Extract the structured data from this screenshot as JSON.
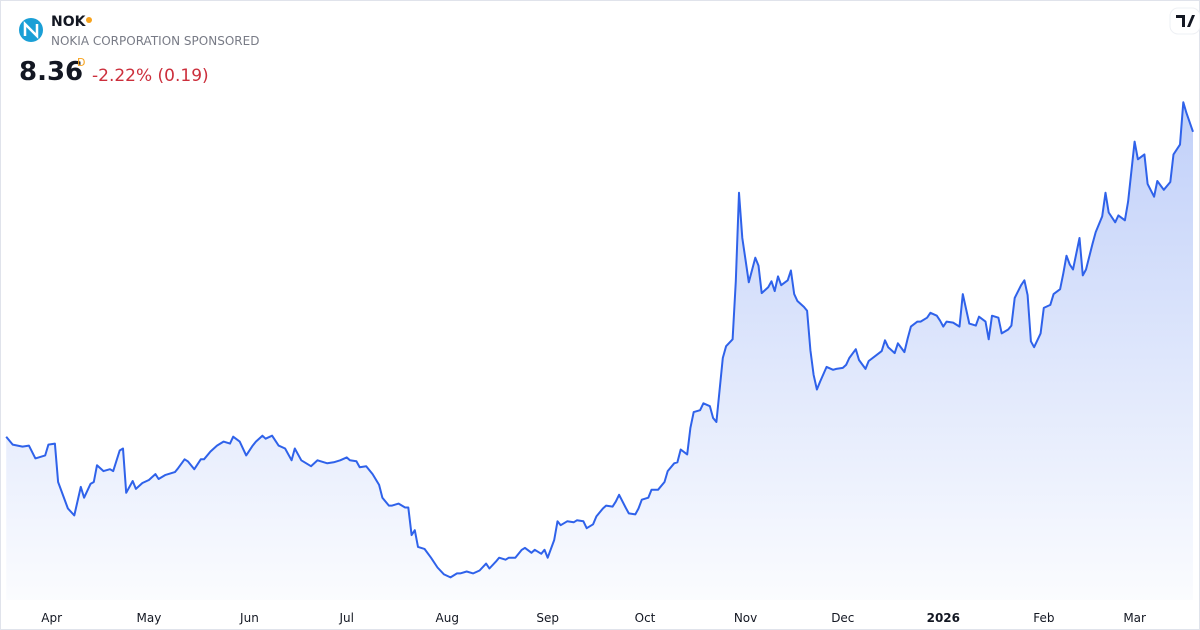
{
  "header": {
    "symbol": "NOK",
    "name": "NOKIA CORPORATION SPONSORED",
    "price": 8.36,
    "interval": "D",
    "change": "-2.22% (0.19)"
  },
  "chart_data": {
    "type": "area",
    "color": "#2f62ea",
    "x": [
      -14,
      -12,
      -9,
      -7,
      -5,
      -2,
      -1,
      1,
      2,
      5,
      7,
      9,
      10,
      12,
      13,
      14,
      16,
      18,
      19,
      21,
      22,
      23,
      25,
      26,
      28,
      30,
      32,
      33,
      35,
      38,
      39,
      41,
      42,
      44,
      46,
      47,
      49,
      51,
      53,
      55,
      56,
      58,
      60,
      62,
      63,
      65,
      66,
      68,
      70,
      72,
      74,
      75,
      77,
      78,
      80,
      82,
      85,
      87,
      89,
      91,
      92,
      94,
      95,
      97,
      99,
      101,
      102,
      104,
      105,
      107,
      109,
      110,
      111,
      112,
      113,
      115,
      117,
      119,
      121,
      123,
      125,
      126,
      128,
      130,
      132,
      134,
      135,
      137,
      138,
      140,
      141,
      143,
      145,
      146,
      148,
      149,
      151,
      152,
      153,
      155,
      156,
      157,
      159,
      161,
      162,
      164,
      165,
      167,
      168,
      170,
      171,
      173,
      174,
      175,
      177,
      178,
      180,
      181,
      182,
      184,
      185,
      187,
      189,
      190,
      192,
      193,
      194,
      196,
      197,
      198,
      200,
      201,
      203,
      204,
      205,
      207,
      208,
      210,
      211,
      212,
      213,
      214,
      215,
      217,
      218,
      219,
      221,
      222,
      223,
      224,
      225,
      227,
      228,
      229,
      230,
      232,
      233,
      234,
      235,
      236,
      237,
      239,
      241,
      242,
      244,
      245,
      246,
      248,
      249,
      251,
      252,
      254,
      256,
      257,
      258,
      260,
      261,
      263,
      264,
      265,
      267,
      268,
      270,
      271,
      273,
      274,
      275,
      276,
      278,
      280,
      281,
      283,
      285,
      286,
      288,
      289,
      290,
      292,
      293,
      295,
      296,
      297,
      299,
      300,
      301,
      302,
      303,
      305,
      306,
      308,
      309,
      311,
      312,
      313,
      314,
      315,
      317,
      318,
      319,
      321,
      322,
      324,
      325,
      326,
      328,
      329,
      331,
      332,
      334,
      335,
      337,
      338,
      340,
      341,
      343,
      345,
      346,
      348,
      349,
      350,
      352
    ],
    "values": [
      5.26,
      5.18,
      5.16,
      5.17,
      5.04,
      5.07,
      5.18,
      5.19,
      4.8,
      4.53,
      4.46,
      4.75,
      4.64,
      4.78,
      4.8,
      4.97,
      4.91,
      4.93,
      4.91,
      5.12,
      5.14,
      4.69,
      4.81,
      4.73,
      4.79,
      4.82,
      4.88,
      4.83,
      4.87,
      4.9,
      4.94,
      5.03,
      5.01,
      4.93,
      5.03,
      5.03,
      5.11,
      5.17,
      5.21,
      5.19,
      5.26,
      5.21,
      5.07,
      5.17,
      5.21,
      5.27,
      5.24,
      5.27,
      5.17,
      5.14,
      5.02,
      5.14,
      5.02,
      5.0,
      4.96,
      5.02,
      4.99,
      5.0,
      5.02,
      5.05,
      5.02,
      5.01,
      4.95,
      4.96,
      4.88,
      4.77,
      4.64,
      4.56,
      4.56,
      4.58,
      4.54,
      4.54,
      4.26,
      4.31,
      4.14,
      4.12,
      4.03,
      3.93,
      3.86,
      3.83,
      3.87,
      3.87,
      3.89,
      3.87,
      3.9,
      3.97,
      3.92,
      3.99,
      4.03,
      4.01,
      4.03,
      4.03,
      4.11,
      4.13,
      4.08,
      4.11,
      4.07,
      4.11,
      4.03,
      4.21,
      4.4,
      4.36,
      4.4,
      4.39,
      4.41,
      4.4,
      4.33,
      4.37,
      4.45,
      4.53,
      4.56,
      4.55,
      4.6,
      4.67,
      4.54,
      4.48,
      4.47,
      4.53,
      4.62,
      4.64,
      4.72,
      4.72,
      4.8,
      4.91,
      4.99,
      5.0,
      5.13,
      5.08,
      5.35,
      5.51,
      5.53,
      5.6,
      5.57,
      5.45,
      5.41,
      6.06,
      6.18,
      6.25,
      6.84,
      7.74,
      7.28,
      7.06,
      6.83,
      7.08,
      7.0,
      6.72,
      6.78,
      6.84,
      6.74,
      6.89,
      6.8,
      6.85,
      6.95,
      6.71,
      6.64,
      6.58,
      6.54,
      6.14,
      5.89,
      5.74,
      5.82,
      5.97,
      5.94,
      5.95,
      5.96,
      5.99,
      6.06,
      6.15,
      6.04,
      5.95,
      6.03,
      6.08,
      6.13,
      6.24,
      6.17,
      6.11,
      6.21,
      6.12,
      6.26,
      6.38,
      6.43,
      6.43,
      6.47,
      6.52,
      6.49,
      6.44,
      6.38,
      6.43,
      6.42,
      6.38,
      6.71,
      6.41,
      6.39,
      6.48,
      6.43,
      6.25,
      6.49,
      6.47,
      6.31,
      6.35,
      6.39,
      6.67,
      6.8,
      6.85,
      6.7,
      6.23,
      6.17,
      6.31,
      6.57,
      6.6,
      6.71,
      6.76,
      6.92,
      7.1,
      7.01,
      6.96,
      7.28,
      6.9,
      6.96,
      7.22,
      7.34,
      7.5,
      7.74,
      7.54,
      7.44,
      7.51,
      7.46,
      7.65,
      8.26,
      8.08,
      8.13,
      7.83,
      7.7,
      7.86,
      7.77,
      7.85,
      8.13,
      8.23,
      8.66,
      8.55,
      8.36
    ],
    "xlim": [
      -15,
      352
    ],
    "ylim": [
      3.6,
      9.7
    ],
    "xticks": [
      {
        "value": 0,
        "label": "Apr"
      },
      {
        "value": 30,
        "label": "May"
      },
      {
        "value": 61,
        "label": "Jun"
      },
      {
        "value": 91,
        "label": "Jul"
      },
      {
        "value": 122,
        "label": "Aug"
      },
      {
        "value": 153,
        "label": "Sep"
      },
      {
        "value": 183,
        "label": "Oct"
      },
      {
        "value": 214,
        "label": "Nov"
      },
      {
        "value": 244,
        "label": "Dec"
      },
      {
        "value": 275,
        "label": "2026",
        "bold": true
      },
      {
        "value": 306,
        "label": "Feb"
      },
      {
        "value": 334,
        "label": "Mar"
      }
    ]
  }
}
